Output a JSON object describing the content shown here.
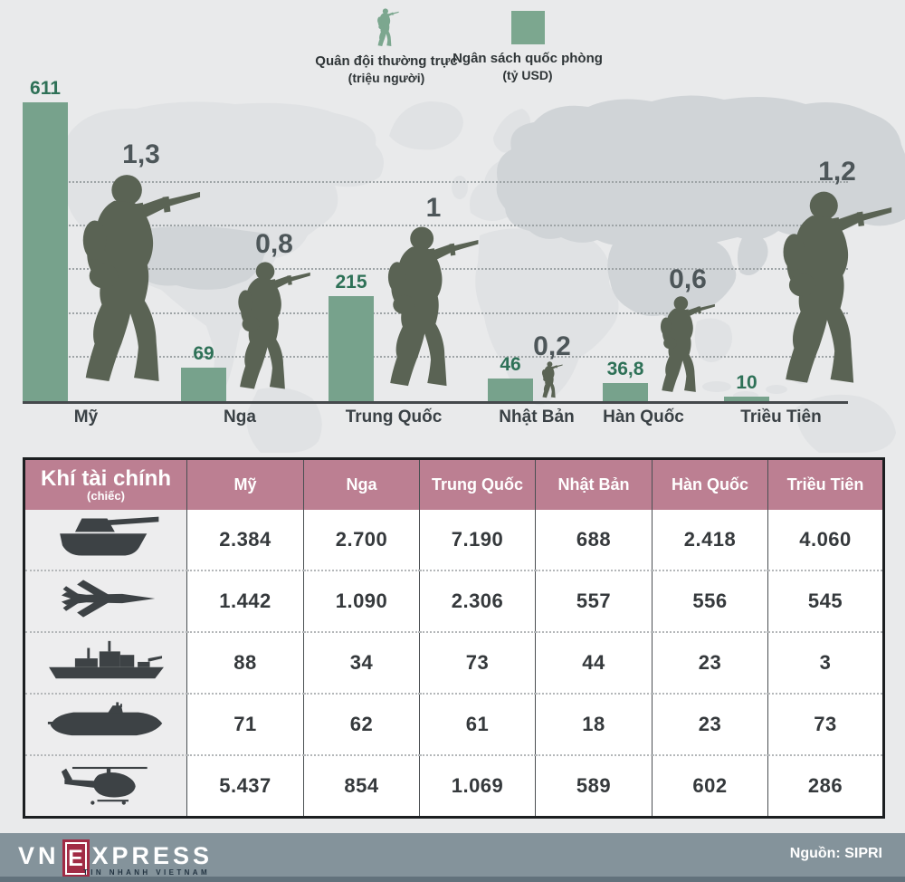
{
  "legend": {
    "troops_label": "Quân đội thường trực",
    "troops_unit": "(triệu người)",
    "budget_label": "Ngân sách quốc phòng",
    "budget_unit": "(tỷ USD)"
  },
  "chart_data": {
    "type": "bar",
    "categories": [
      "Mỹ",
      "Nga",
      "Trung Quốc",
      "Nhật Bản",
      "Hàn Quốc",
      "Triều Tiên"
    ],
    "series": [
      {
        "name": "Ngân sách quốc phòng (tỷ USD)",
        "values": [
          611,
          69,
          215,
          46,
          36.8,
          10
        ],
        "labels": [
          "611",
          "69",
          "215",
          "46",
          "36,8",
          "10"
        ]
      },
      {
        "name": "Quân đội thường trực (triệu người)",
        "values": [
          1.3,
          0.8,
          1,
          0.2,
          0.6,
          1.2
        ],
        "labels": [
          "1,3",
          "0,8",
          "1",
          "0,2",
          "0,6",
          "1,2"
        ]
      }
    ],
    "title": "",
    "xlabel": "",
    "ylabel": "",
    "grid": "dashed horizontal",
    "legend_position": "top"
  },
  "table": {
    "title": "Khí tài chính",
    "subtitle": "(chiếc)",
    "columns": [
      "Mỹ",
      "Nga",
      "Trung Quốc",
      "Nhật Bản",
      "Hàn Quốc",
      "Triều Tiên"
    ],
    "rows": [
      {
        "icon": "tank-icon",
        "values": [
          "2.384",
          "2.700",
          "7.190",
          "688",
          "2.418",
          "4.060"
        ]
      },
      {
        "icon": "fighter-jet-icon",
        "values": [
          "1.442",
          "1.090",
          "2.306",
          "557",
          "556",
          "545"
        ]
      },
      {
        "icon": "warship-icon",
        "values": [
          "88",
          "34",
          "73",
          "44",
          "23",
          "3"
        ]
      },
      {
        "icon": "submarine-icon",
        "values": [
          "71",
          "62",
          "61",
          "18",
          "23",
          "73"
        ]
      },
      {
        "icon": "helicopter-icon",
        "values": [
          "5.437",
          "854",
          "1.069",
          "589",
          "602",
          "286"
        ]
      }
    ]
  },
  "footer": {
    "logo_vn": "VN",
    "logo_e": "E",
    "logo_xpress": "XPRESS",
    "logo_tagline": "TIN NHANH VIETNAM",
    "source": "Nguồn: SIPRI"
  },
  "colors": {
    "page_bg": "#e9eaeb",
    "bar_green": "#77a28c",
    "bar_value_green": "#2e7157",
    "soldier_olive": "#5a6354",
    "troop_value_gray": "#4d5659",
    "country_label": "#3a4145",
    "map_land_light": "#e0e2e4",
    "map_land_dark": "#d0d4d7",
    "grid_dot": "#9ea4a6",
    "axis_line": "#45494c",
    "table_header_pink": "#bc7f92",
    "table_text": "#35393c",
    "icon_dark": "#3d4245",
    "footer_bar": "#84939b",
    "footer_strip": "#62727c",
    "logo_red": "#a12b45"
  }
}
